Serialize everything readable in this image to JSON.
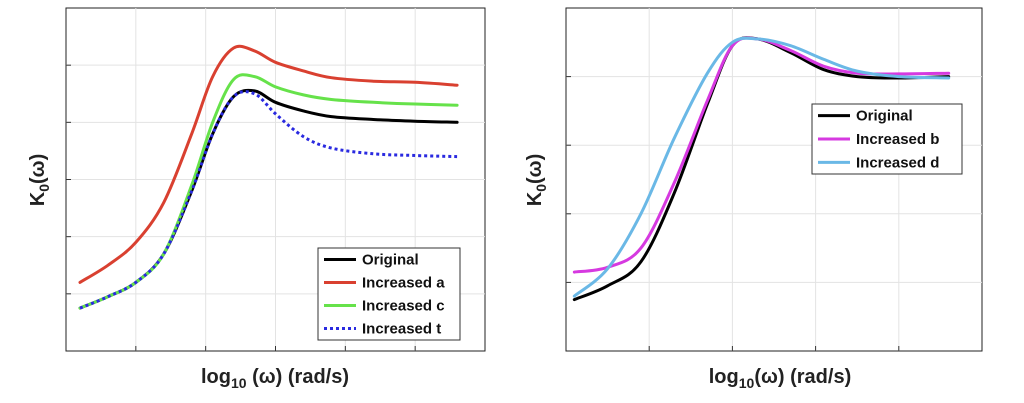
{
  "chart_data": [
    {
      "type": "line",
      "title": "",
      "xlabel": {
        "main": "log",
        "sub": "10",
        "rest": " (ω) (rad/s)"
      },
      "ylabel": {
        "main": "K",
        "sub": "0",
        "rest": "(ω)"
      },
      "xlim": [
        0,
        6
      ],
      "ylim": [
        0,
        6
      ],
      "x_ticks": [
        1,
        2,
        3,
        4,
        5
      ],
      "y_ticks": [
        1,
        2,
        3,
        4,
        5
      ],
      "tick_labels_shown": false,
      "grid": true,
      "legend_position": "bottom-right",
      "series": [
        {
          "name": "Original",
          "color": "#000000",
          "style": "solid",
          "x": [
            0.2,
            0.6,
            1.0,
            1.4,
            1.8,
            2.1,
            2.4,
            2.7,
            3.0,
            3.4,
            3.8,
            4.4,
            5.0,
            5.6
          ],
          "y": [
            0.75,
            0.95,
            1.2,
            1.7,
            2.8,
            3.8,
            4.45,
            4.55,
            4.35,
            4.2,
            4.1,
            4.05,
            4.02,
            4.0
          ]
        },
        {
          "name": "Increased a",
          "color": "#d94030",
          "style": "solid",
          "x": [
            0.2,
            0.6,
            1.0,
            1.4,
            1.8,
            2.1,
            2.4,
            2.7,
            3.0,
            3.4,
            3.8,
            4.4,
            5.0,
            5.6
          ],
          "y": [
            1.2,
            1.5,
            1.9,
            2.6,
            3.8,
            4.8,
            5.3,
            5.25,
            5.05,
            4.9,
            4.78,
            4.72,
            4.7,
            4.65
          ]
        },
        {
          "name": "Increased c",
          "color": "#66e24a",
          "style": "solid",
          "x": [
            0.2,
            0.6,
            1.0,
            1.4,
            1.8,
            2.1,
            2.4,
            2.7,
            3.0,
            3.4,
            3.8,
            4.4,
            5.0,
            5.6
          ],
          "y": [
            0.75,
            0.95,
            1.2,
            1.7,
            2.9,
            4.0,
            4.75,
            4.8,
            4.62,
            4.48,
            4.4,
            4.35,
            4.32,
            4.3
          ]
        },
        {
          "name": "Increased t",
          "color": "#2a2ae0",
          "style": "dotted",
          "x": [
            0.2,
            0.6,
            1.0,
            1.4,
            1.8,
            2.1,
            2.4,
            2.7,
            3.0,
            3.4,
            3.8,
            4.4,
            5.0,
            5.6
          ],
          "y": [
            0.75,
            0.95,
            1.2,
            1.7,
            2.8,
            3.8,
            4.45,
            4.5,
            4.15,
            3.75,
            3.55,
            3.45,
            3.42,
            3.4
          ]
        }
      ]
    },
    {
      "type": "line",
      "title": "",
      "xlabel": {
        "main": "log",
        "sub": "10",
        "rest": "(ω) (rad/s)"
      },
      "ylabel": {
        "main": "K",
        "sub": "0",
        "rest": "(ω)"
      },
      "xlim": [
        0,
        5
      ],
      "ylim": [
        0,
        5
      ],
      "x_ticks": [
        1,
        2,
        3,
        4
      ],
      "y_ticks": [
        1,
        2,
        3,
        4
      ],
      "tick_labels_shown": false,
      "grid": true,
      "legend_position": "top-right",
      "series": [
        {
          "name": "Original",
          "color": "#000000",
          "style": "solid",
          "x": [
            0.1,
            0.5,
            0.9,
            1.3,
            1.7,
            2.0,
            2.3,
            2.7,
            3.1,
            3.5,
            4.0,
            4.6
          ],
          "y": [
            0.75,
            0.95,
            1.3,
            2.3,
            3.6,
            4.45,
            4.55,
            4.35,
            4.1,
            4.0,
            3.98,
            4.0
          ]
        },
        {
          "name": "Increased b",
          "color": "#d639e0",
          "style": "solid",
          "x": [
            0.1,
            0.5,
            0.9,
            1.3,
            1.7,
            2.0,
            2.3,
            2.7,
            3.1,
            3.5,
            4.0,
            4.6
          ],
          "y": [
            1.15,
            1.22,
            1.5,
            2.45,
            3.65,
            4.45,
            4.55,
            4.38,
            4.15,
            4.05,
            4.04,
            4.05
          ]
        },
        {
          "name": "Increased d",
          "color": "#6ab8e6",
          "style": "solid",
          "x": [
            0.1,
            0.5,
            0.9,
            1.3,
            1.7,
            2.0,
            2.3,
            2.7,
            3.1,
            3.5,
            4.0,
            4.6
          ],
          "y": [
            0.8,
            1.2,
            2.0,
            3.1,
            4.05,
            4.5,
            4.55,
            4.45,
            4.25,
            4.08,
            4.0,
            3.98
          ]
        }
      ]
    }
  ]
}
